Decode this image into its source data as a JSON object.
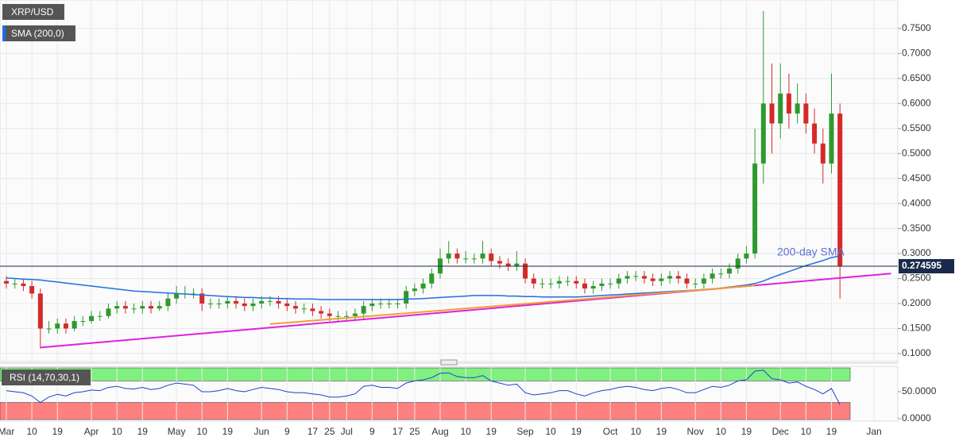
{
  "chart_data": [
    {
      "type": "candlestick",
      "categories": [
        "Mar",
        null,
        null,
        "10",
        null,
        null,
        "19",
        null,
        null,
        null,
        "Apr",
        null,
        null,
        "10",
        null,
        null,
        "19",
        null,
        null,
        null,
        "May",
        null,
        null,
        "10",
        null,
        null,
        "19",
        null,
        null,
        null,
        "Jun",
        null,
        null,
        "9",
        null,
        null,
        "17",
        null,
        "25",
        null,
        "Jul",
        null,
        null,
        "9",
        null,
        null,
        "17",
        null,
        "25",
        null,
        null,
        "Aug",
        null,
        null,
        "10",
        null,
        null,
        "19",
        null,
        null,
        null,
        "Sep",
        null,
        null,
        "10",
        null,
        null,
        "19",
        null,
        null,
        null,
        "Oct",
        null,
        null,
        "10",
        null,
        null,
        "19",
        null,
        null,
        null,
        "Nov",
        null,
        null,
        "10",
        null,
        null,
        "19",
        null,
        null,
        null,
        "Dec",
        null,
        null,
        "10",
        null,
        null,
        "19",
        null,
        null,
        null,
        null,
        "Jan",
        null
      ],
      "series": [
        {
          "name": "XRP/USD",
          "up_color": "#2e9a2e",
          "down_color": "#d42a2a",
          "open": [
            0.245,
            0.24,
            0.24,
            0.235,
            0.22,
            0.15,
            0.15,
            0.16,
            0.15,
            0.165,
            0.165,
            0.175,
            0.175,
            0.19,
            0.195,
            0.19,
            0.19,
            0.195,
            0.19,
            0.195,
            0.21,
            0.22,
            0.22,
            0.22,
            0.2,
            0.2,
            0.2,
            0.205,
            0.2,
            0.195,
            0.2,
            0.205,
            0.205,
            0.2,
            0.195,
            0.19,
            0.19,
            0.185,
            0.18,
            0.175,
            0.175,
            0.175,
            0.18,
            0.195,
            0.2,
            0.2,
            0.2,
            0.2,
            0.225,
            0.23,
            0.24,
            0.26,
            0.29,
            0.3,
            0.29,
            0.29,
            0.29,
            0.3,
            0.285,
            0.28,
            0.275,
            0.28,
            0.25,
            0.24,
            0.24,
            0.24,
            0.245,
            0.245,
            0.24,
            0.23,
            0.235,
            0.24,
            0.24,
            0.25,
            0.255,
            0.255,
            0.25,
            0.245,
            0.25,
            0.255,
            0.25,
            0.24,
            0.24,
            0.25,
            0.26,
            0.26,
            0.27,
            0.29,
            0.3,
            0.48,
            0.6,
            0.56,
            0.62,
            0.58,
            0.6,
            0.56,
            0.52,
            0.48,
            0.58,
            null,
            null,
            null,
            null,
            null
          ],
          "high": [
            0.255,
            0.25,
            0.25,
            0.245,
            0.23,
            0.165,
            0.17,
            0.17,
            0.175,
            0.175,
            0.185,
            0.185,
            0.2,
            0.205,
            0.205,
            0.2,
            0.205,
            0.205,
            0.205,
            0.22,
            0.235,
            0.235,
            0.23,
            0.23,
            0.21,
            0.21,
            0.215,
            0.215,
            0.21,
            0.21,
            0.215,
            0.215,
            0.215,
            0.21,
            0.205,
            0.2,
            0.2,
            0.195,
            0.19,
            0.185,
            0.185,
            0.19,
            0.205,
            0.21,
            0.21,
            0.21,
            0.21,
            0.235,
            0.24,
            0.25,
            0.27,
            0.31,
            0.325,
            0.31,
            0.305,
            0.3,
            0.325,
            0.31,
            0.295,
            0.29,
            0.305,
            0.29,
            0.26,
            0.25,
            0.25,
            0.255,
            0.255,
            0.255,
            0.25,
            0.245,
            0.25,
            0.25,
            0.26,
            0.265,
            0.265,
            0.265,
            0.26,
            0.26,
            0.265,
            0.265,
            0.26,
            0.25,
            0.26,
            0.27,
            0.27,
            0.28,
            0.3,
            0.315,
            0.55,
            0.785,
            0.68,
            0.68,
            0.66,
            0.64,
            0.62,
            0.59,
            0.55,
            0.66,
            0.6,
            null,
            null,
            null,
            null,
            null
          ],
          "low": [
            0.23,
            0.23,
            0.225,
            0.21,
            0.11,
            0.14,
            0.14,
            0.14,
            0.145,
            0.155,
            0.16,
            0.165,
            0.17,
            0.18,
            0.18,
            0.18,
            0.18,
            0.18,
            0.185,
            0.185,
            0.2,
            0.21,
            0.21,
            0.185,
            0.19,
            0.19,
            0.19,
            0.19,
            0.185,
            0.185,
            0.19,
            0.195,
            0.19,
            0.185,
            0.18,
            0.18,
            0.175,
            0.17,
            0.165,
            0.165,
            0.165,
            0.165,
            0.17,
            0.185,
            0.19,
            0.19,
            0.19,
            0.19,
            0.215,
            0.22,
            0.23,
            0.25,
            0.28,
            0.28,
            0.28,
            0.28,
            0.28,
            0.275,
            0.27,
            0.265,
            0.265,
            0.24,
            0.23,
            0.23,
            0.23,
            0.23,
            0.235,
            0.23,
            0.22,
            0.22,
            0.225,
            0.23,
            0.23,
            0.24,
            0.245,
            0.24,
            0.235,
            0.235,
            0.24,
            0.24,
            0.23,
            0.23,
            0.23,
            0.24,
            0.25,
            0.25,
            0.26,
            0.28,
            0.29,
            0.44,
            0.5,
            0.53,
            0.55,
            0.56,
            0.54,
            0.5,
            0.44,
            0.46,
            0.21,
            null,
            null,
            null,
            null,
            null
          ],
          "close": [
            0.24,
            0.24,
            0.235,
            0.22,
            0.15,
            0.15,
            0.16,
            0.15,
            0.165,
            0.165,
            0.175,
            0.175,
            0.19,
            0.195,
            0.19,
            0.19,
            0.195,
            0.19,
            0.195,
            0.21,
            0.22,
            0.22,
            0.22,
            0.2,
            0.2,
            0.2,
            0.205,
            0.2,
            0.195,
            0.2,
            0.205,
            0.205,
            0.2,
            0.195,
            0.19,
            0.19,
            0.185,
            0.18,
            0.175,
            0.175,
            0.175,
            0.18,
            0.195,
            0.2,
            0.2,
            0.2,
            0.2,
            0.225,
            0.23,
            0.24,
            0.26,
            0.29,
            0.3,
            0.29,
            0.29,
            0.29,
            0.3,
            0.285,
            0.28,
            0.275,
            0.28,
            0.25,
            0.24,
            0.24,
            0.24,
            0.245,
            0.245,
            0.24,
            0.23,
            0.235,
            0.24,
            0.24,
            0.25,
            0.255,
            0.255,
            0.25,
            0.245,
            0.25,
            0.255,
            0.25,
            0.24,
            0.24,
            0.25,
            0.26,
            0.26,
            0.27,
            0.29,
            0.3,
            0.48,
            0.6,
            0.56,
            0.62,
            0.58,
            0.6,
            0.56,
            0.52,
            0.48,
            0.58,
            0.2746,
            null,
            null,
            null,
            null,
            null
          ]
        },
        {
          "name": "SMA (200,0)",
          "color": "#1f6fe0",
          "values": [
            0.251,
            0.25,
            0.249,
            0.248,
            0.247,
            0.245,
            0.243,
            0.241,
            0.239,
            0.237,
            0.235,
            0.233,
            0.231,
            0.229,
            0.227,
            0.225,
            0.224,
            0.223,
            0.222,
            0.221,
            0.22,
            0.219,
            0.218,
            0.217,
            0.216,
            0.215,
            0.214,
            0.213,
            0.212,
            0.212,
            0.211,
            0.211,
            0.21,
            0.21,
            0.209,
            0.209,
            0.209,
            0.208,
            0.208,
            0.208,
            0.208,
            0.208,
            0.208,
            0.208,
            0.208,
            0.208,
            0.208,
            0.209,
            0.209,
            0.21,
            0.211,
            0.212,
            0.213,
            0.214,
            0.215,
            0.216,
            0.216,
            0.216,
            0.216,
            0.215,
            0.215,
            0.214,
            0.214,
            0.213,
            0.213,
            0.213,
            0.213,
            0.213,
            0.214,
            0.215,
            0.216,
            0.217,
            0.218,
            0.219,
            0.22,
            0.221,
            0.222,
            0.223,
            0.224,
            0.225,
            0.226,
            0.227,
            0.228,
            0.229,
            0.231,
            0.233,
            0.235,
            0.237,
            0.24,
            0.245,
            0.252,
            0.258,
            0.264,
            0.27,
            0.276,
            0.281,
            0.286,
            0.292,
            0.295,
            null,
            null,
            null,
            null,
            null
          ]
        }
      ],
      "trendlines": [
        {
          "color": "#e020e0",
          "points": [
            [
              4,
              0.112
            ],
            [
              104,
              0.26
            ]
          ]
        },
        {
          "color": "#f0a030",
          "points": [
            [
              31,
              0.159
            ],
            [
              88,
              0.236
            ]
          ]
        }
      ],
      "annotation": "200-day SMA",
      "last_price": 0.274595,
      "ylim": [
        0.084,
        0.807
      ],
      "yticks": [
        {
          "value": 0.1,
          "label": "0.1000"
        },
        {
          "value": 0.15,
          "label": "0.1500"
        },
        {
          "value": 0.2,
          "label": "0.2000"
        },
        {
          "value": 0.25,
          "label": "0.2500"
        },
        {
          "value": 0.3,
          "label": "0.3000"
        },
        {
          "value": 0.35,
          "label": "0.3500"
        },
        {
          "value": 0.4,
          "label": "0.4000"
        },
        {
          "value": 0.45,
          "label": "0.4500"
        },
        {
          "value": 0.5,
          "label": "0.5000"
        },
        {
          "value": 0.55,
          "label": "0.5500"
        },
        {
          "value": 0.6,
          "label": "0.6000"
        },
        {
          "value": 0.65,
          "label": "0.6500"
        },
        {
          "value": 0.7,
          "label": "0.7000"
        },
        {
          "value": 0.75,
          "label": "0.7500"
        }
      ],
      "grid": true
    },
    {
      "type": "line",
      "title": "RSI (14,70,30,1)",
      "color": "#1f3fd0",
      "values": [
        52,
        50,
        48,
        42,
        30,
        40,
        45,
        42,
        48,
        50,
        53,
        52,
        58,
        60,
        56,
        55,
        58,
        54,
        56,
        62,
        66,
        64,
        62,
        50,
        50,
        52,
        56,
        52,
        50,
        54,
        58,
        56,
        54,
        50,
        48,
        48,
        46,
        44,
        40,
        40,
        42,
        46,
        60,
        62,
        58,
        58,
        56,
        66,
        70,
        72,
        76,
        84,
        85,
        78,
        76,
        76,
        80,
        70,
        66,
        62,
        64,
        48,
        44,
        46,
        48,
        52,
        52,
        46,
        42,
        48,
        52,
        54,
        58,
        60,
        58,
        54,
        52,
        56,
        58,
        54,
        48,
        48,
        54,
        60,
        58,
        62,
        70,
        72,
        88,
        90,
        74,
        72,
        66,
        68,
        60,
        54,
        46,
        56,
        26,
        null,
        null,
        null,
        null,
        null
      ],
      "overbought": 70,
      "oversold": 30,
      "overbought_color": "#80f080",
      "oversold_color": "#ff8080",
      "ylim": [
        -4.5,
        97
      ],
      "yticks": [
        {
          "value": 0,
          "label": "0.0000"
        },
        {
          "value": 50,
          "label": "50.0000"
        }
      ]
    }
  ]
}
